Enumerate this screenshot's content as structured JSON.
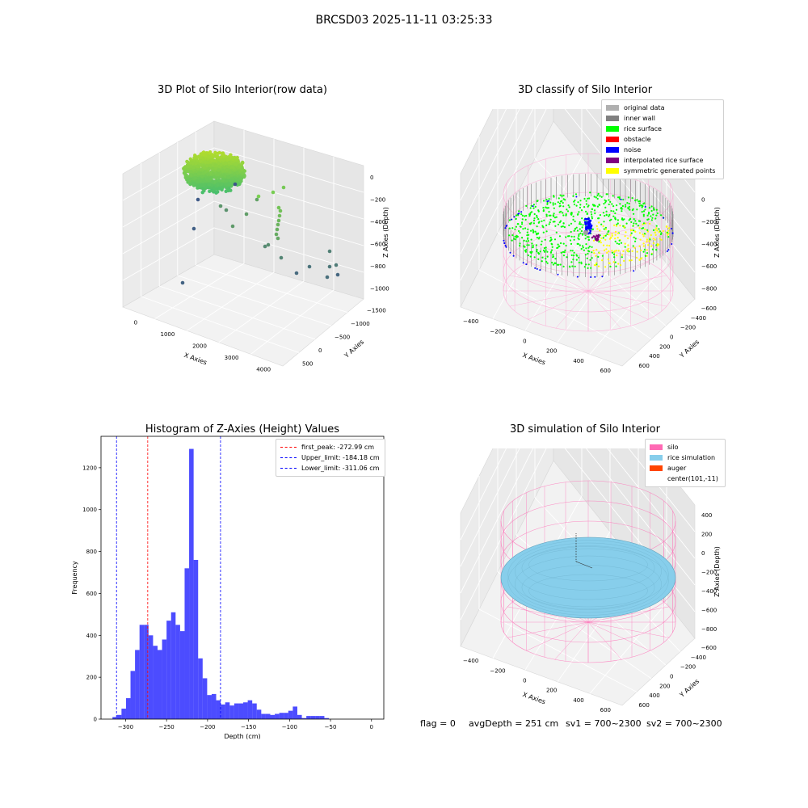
{
  "figure": {
    "suptitle": "BRCSD03 2025-11-11 03:25:33",
    "status": {
      "flag": "flag = 0",
      "avg": "avgDepth = 251 cm",
      "sv1": "sv1 = 700~2300",
      "sv2": "sv2 = 700~2300"
    }
  },
  "chart_data": [
    {
      "type": "scatter",
      "title": "3D Plot of Silo Interior(row data)",
      "xlabel": "X Axies",
      "ylabel": "Y Axies",
      "zlabel": "Z Axies (Depth)",
      "xticks": [
        "0",
        "1000",
        "2000",
        "3000",
        "4000"
      ],
      "yticks": [
        "500",
        "0",
        "−500",
        "−1000",
        "−1500"
      ],
      "zticks": [
        "0",
        "−200",
        "−400",
        "−600",
        "−800",
        "−1000"
      ],
      "cluster": {
        "x_range": [
          0,
          700
        ],
        "y_range": [
          0,
          500
        ],
        "z_range": [
          -300,
          -100
        ],
        "color_from": "#b8de29",
        "color_to": "#3bbb75"
      },
      "outliers_note": "sparse points descending to z ≈ -1000"
    },
    {
      "type": "scatter",
      "title": "3D classify of Silo Interior",
      "xlabel": "X Axies",
      "ylabel": "Y Axies",
      "zlabel": "Z Axies (Depth)",
      "xticks": [
        "−400",
        "−200",
        "0",
        "200",
        "400",
        "600"
      ],
      "yticks": [
        "600",
        "400",
        "200",
        "0",
        "−200",
        "−400",
        "−600"
      ],
      "zticks": [
        "200",
        "0",
        "−200",
        "−400",
        "−600",
        "−800"
      ],
      "legend": [
        {
          "label": "original data",
          "color": "#b0b0b0"
        },
        {
          "label": "inner wall",
          "color": "#808080"
        },
        {
          "label": "rice surface",
          "color": "#00ff00"
        },
        {
          "label": "obstacle",
          "color": "#ff0000"
        },
        {
          "label": "noise",
          "color": "#0000ff"
        },
        {
          "label": "interpolated rice surface",
          "color": "#800080"
        },
        {
          "label": "symmetric generated points",
          "color": "#ffff00"
        }
      ]
    },
    {
      "type": "bar",
      "title": "Histogram of Z-Axies (Height) Values",
      "xlabel": "Depth (cm)",
      "ylabel": "Frequency",
      "xlim": [
        -330,
        15
      ],
      "ylim": [
        0,
        1350
      ],
      "xticks": [
        -300,
        -250,
        -200,
        -150,
        -100,
        -50,
        0
      ],
      "yticks": [
        0,
        200,
        400,
        600,
        800,
        1000,
        1200
      ],
      "bar_color": "#0000ff",
      "bins": {
        "start": -316,
        "width": 5.5,
        "counts": [
          10,
          20,
          50,
          100,
          230,
          330,
          450,
          450,
          400,
          350,
          330,
          380,
          470,
          510,
          450,
          420,
          720,
          1290,
          760,
          290,
          195,
          115,
          120,
          90,
          70,
          80,
          65,
          75,
          75,
          80,
          90,
          75,
          45,
          25,
          25,
          20,
          25,
          30,
          30,
          40,
          60,
          20,
          5,
          15,
          15,
          15,
          15,
          5,
          0,
          0
        ]
      },
      "lines": [
        {
          "label": "first_peak: -272.99 cm",
          "x": -272.99,
          "color": "#ff0000"
        },
        {
          "label": "Upper_limit: -184.18 cm",
          "x": -184.18,
          "color": "#0000ff"
        },
        {
          "label": "Lower_limit: -311.06 cm",
          "x": -311.06,
          "color": "#0000ff"
        }
      ]
    },
    {
      "type": "scatter",
      "title": "3D simulation of Silo Interior",
      "xlabel": "X Axies",
      "ylabel": "Y Axies",
      "zlabel": "Z Axies (Depth)",
      "xticks": [
        "−400",
        "−200",
        "0",
        "200",
        "400",
        "600"
      ],
      "yticks": [
        "600",
        "400",
        "200",
        "0",
        "−200",
        "−400",
        "−600"
      ],
      "zticks": [
        "400",
        "200",
        "0",
        "−200",
        "−400",
        "−600",
        "−800"
      ],
      "legend": [
        {
          "label": "silo",
          "color": "#ff69b4"
        },
        {
          "label": "rice simulation",
          "color": "#87ceeb"
        },
        {
          "label": "auger",
          "color": "#ff4500"
        },
        {
          "label": "center(101,-11)",
          "color": ""
        }
      ]
    }
  ]
}
